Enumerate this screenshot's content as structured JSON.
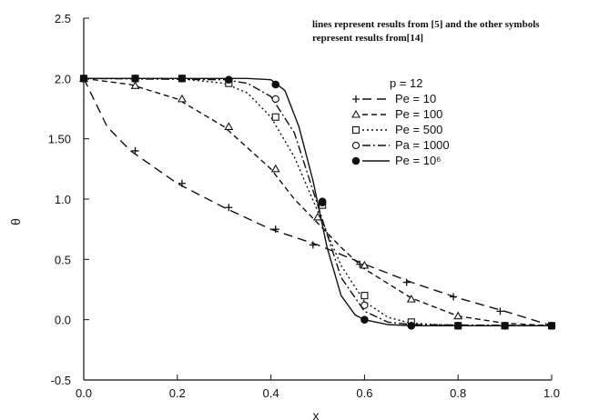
{
  "chart_data": {
    "type": "line",
    "xlabel": "x",
    "ylabel": "θ",
    "xlim": [
      0,
      1
    ],
    "ylim": [
      -0.5,
      2.5
    ],
    "grid": false,
    "x_ticks": [
      "0.0",
      "0.2",
      "0.4",
      "0.6",
      "0.8",
      "1.0"
    ],
    "y_ticks": [
      "-0.5",
      "0.0",
      "0.5",
      "1.0",
      "1.50",
      "2.0",
      "2.5"
    ],
    "annotation": [
      "lines represent results from [5] and the other symbols",
      "represent results from[14]"
    ],
    "legend_title": "p = 12",
    "legend_position": "right",
    "series": [
      {
        "name": "Pe = 10",
        "dash": "10,6",
        "marker": "plus",
        "line": {
          "x": [
            0.0,
            0.05,
            0.1,
            0.2,
            0.3,
            0.4,
            0.5,
            0.6,
            0.7,
            0.8,
            0.9,
            1.0
          ],
          "y": [
            2.0,
            1.6,
            1.4,
            1.13,
            0.93,
            0.75,
            0.62,
            0.46,
            0.31,
            0.18,
            0.07,
            -0.05
          ]
        },
        "points": {
          "x": [
            0.0,
            0.11,
            0.21,
            0.31,
            0.41,
            0.49,
            0.59,
            0.69,
            0.79,
            0.89
          ],
          "y": [
            2.0,
            1.4,
            1.13,
            0.93,
            0.75,
            0.62,
            0.46,
            0.31,
            0.19,
            0.07
          ]
        }
      },
      {
        "name": "Pe = 100",
        "dash": "6,4",
        "marker": "triangle",
        "line": {
          "x": [
            0.0,
            0.1,
            0.2,
            0.3,
            0.4,
            0.45,
            0.5,
            0.55,
            0.6,
            0.7,
            0.8,
            0.9,
            1.0
          ],
          "y": [
            2.0,
            1.95,
            1.83,
            1.6,
            1.25,
            1.0,
            0.8,
            0.6,
            0.42,
            0.18,
            0.03,
            -0.03,
            -0.05
          ]
        },
        "points": {
          "x": [
            0.0,
            0.11,
            0.21,
            0.31,
            0.41,
            0.5,
            0.6,
            0.7,
            0.8
          ],
          "y": [
            2.0,
            1.94,
            1.83,
            1.6,
            1.25,
            0.85,
            0.45,
            0.17,
            0.03
          ]
        }
      },
      {
        "name": "Pe = 500",
        "dash": "2,3",
        "marker": "square",
        "line": {
          "x": [
            0.0,
            0.2,
            0.3,
            0.35,
            0.4,
            0.45,
            0.5,
            0.55,
            0.6,
            0.65,
            0.7,
            0.8,
            1.0
          ],
          "y": [
            2.0,
            2.0,
            1.96,
            1.88,
            1.68,
            1.35,
            0.9,
            0.45,
            0.15,
            0.02,
            -0.03,
            -0.05,
            -0.05
          ]
        },
        "points": {
          "x": [
            0.0,
            0.11,
            0.21,
            0.31,
            0.41,
            0.51,
            0.6,
            0.7,
            0.8,
            0.9,
            1.0
          ],
          "y": [
            2.0,
            2.0,
            2.0,
            1.96,
            1.68,
            0.95,
            0.2,
            -0.02,
            -0.05,
            -0.05,
            -0.05
          ]
        }
      },
      {
        "name": "Pa = 1000",
        "dash": "9,3,2,3",
        "marker": "circle",
        "line": {
          "x": [
            0.0,
            0.3,
            0.35,
            0.4,
            0.45,
            0.5,
            0.55,
            0.6,
            0.65,
            0.7,
            1.0
          ],
          "y": [
            2.0,
            1.99,
            1.96,
            1.85,
            1.55,
            0.95,
            0.35,
            0.07,
            -0.02,
            -0.04,
            -0.05
          ]
        },
        "points": {
          "x": [
            0.41,
            0.51,
            0.6
          ],
          "y": [
            1.83,
            0.97,
            0.12
          ]
        }
      },
      {
        "name": "Pe = 10⁶",
        "dash": "",
        "marker": "filled-circle",
        "line": {
          "x": [
            0.0,
            0.35,
            0.4,
            0.43,
            0.46,
            0.49,
            0.52,
            0.55,
            0.58,
            0.6,
            0.65,
            0.7,
            1.0
          ],
          "y": [
            2.0,
            2.0,
            1.99,
            1.9,
            1.6,
            1.15,
            0.6,
            0.2,
            0.04,
            0.0,
            -0.04,
            -0.05,
            -0.05
          ]
        },
        "points": {
          "x": [
            0.0,
            0.11,
            0.21,
            0.31,
            0.41,
            0.51,
            0.6,
            0.7,
            0.8,
            0.9,
            1.0
          ],
          "y": [
            2.0,
            2.0,
            2.0,
            1.99,
            1.95,
            0.98,
            0.0,
            -0.05,
            -0.05,
            -0.05,
            -0.05
          ]
        }
      }
    ]
  }
}
